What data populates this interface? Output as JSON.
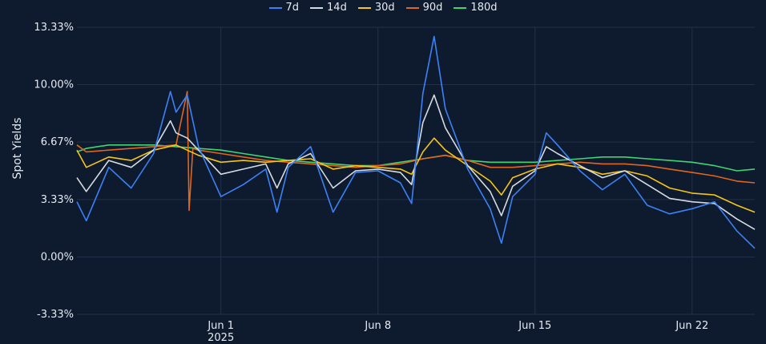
{
  "chart_data": {
    "type": "line",
    "ylabel": "Spot Yields",
    "xlabel": "",
    "y_ticks": [
      "13.33%",
      "10.00%",
      "6.67%",
      "3.33%",
      "0.00%",
      "-3.33%"
    ],
    "y_tick_values": [
      13.33,
      10.0,
      6.67,
      3.33,
      0.0,
      -3.33
    ],
    "ylim": [
      -3.33,
      13.33
    ],
    "x_ticks": [
      {
        "label": "Jun 1",
        "sub": "2025",
        "date": "2025-06-01"
      },
      {
        "label": "Jun 8",
        "sub": "",
        "date": "2025-06-08"
      },
      {
        "label": "Jun 15",
        "sub": "",
        "date": "2025-06-15"
      },
      {
        "label": "Jun 22",
        "sub": "",
        "date": "2025-06-22"
      }
    ],
    "xlim": [
      "2025-05-25T14:00",
      "2025-06-24T19:00"
    ],
    "grid": true,
    "legend_position": "top-center",
    "series": [
      {
        "name": "7d",
        "color": "#3b82f6",
        "points": [
          [
            "2025-05-25T14:00",
            3.2
          ],
          [
            "2025-05-26",
            2.1
          ],
          [
            "2025-05-27",
            5.2
          ],
          [
            "2025-05-28",
            4.0
          ],
          [
            "2025-05-29",
            6.0
          ],
          [
            "2025-05-29T18:00",
            9.6
          ],
          [
            "2025-05-30",
            8.4
          ],
          [
            "2025-05-30T12:00",
            9.4
          ],
          [
            "2025-05-31",
            6.4
          ],
          [
            "2025-06-01",
            3.5
          ],
          [
            "2025-06-02",
            4.2
          ],
          [
            "2025-06-03",
            5.1
          ],
          [
            "2025-06-03T12:00",
            2.6
          ],
          [
            "2025-06-04",
            5.2
          ],
          [
            "2025-06-05",
            6.4
          ],
          [
            "2025-06-06",
            2.6
          ],
          [
            "2025-06-07",
            4.9
          ],
          [
            "2025-06-08",
            5.0
          ],
          [
            "2025-06-09",
            4.3
          ],
          [
            "2025-06-09T12:00",
            3.1
          ],
          [
            "2025-06-10",
            9.5
          ],
          [
            "2025-06-10T12:00",
            12.8
          ],
          [
            "2025-06-11",
            8.6
          ],
          [
            "2025-06-12",
            5.1
          ],
          [
            "2025-06-13",
            2.8
          ],
          [
            "2025-06-13T12:00",
            0.8
          ],
          [
            "2025-06-14",
            3.5
          ],
          [
            "2025-06-15",
            4.8
          ],
          [
            "2025-06-15T12:00",
            7.2
          ],
          [
            "2025-06-16",
            6.5
          ],
          [
            "2025-06-17",
            5.0
          ],
          [
            "2025-06-18",
            3.9
          ],
          [
            "2025-06-19",
            4.8
          ],
          [
            "2025-06-20",
            3.0
          ],
          [
            "2025-06-21",
            2.5
          ],
          [
            "2025-06-22",
            2.8
          ],
          [
            "2025-06-23",
            3.2
          ],
          [
            "2025-06-24",
            1.5
          ],
          [
            "2025-06-24T19:00",
            0.5
          ]
        ]
      },
      {
        "name": "14d",
        "color": "#d6dbe2",
        "points": [
          [
            "2025-05-25T14:00",
            4.6
          ],
          [
            "2025-05-26",
            3.8
          ],
          [
            "2025-05-27",
            5.6
          ],
          [
            "2025-05-28",
            5.2
          ],
          [
            "2025-05-29",
            6.2
          ],
          [
            "2025-05-29T18:00",
            7.9
          ],
          [
            "2025-05-30",
            7.2
          ],
          [
            "2025-05-30T12:00",
            6.9
          ],
          [
            "2025-05-31",
            6.2
          ],
          [
            "2025-06-01",
            4.8
          ],
          [
            "2025-06-02",
            5.1
          ],
          [
            "2025-06-03",
            5.4
          ],
          [
            "2025-06-03T12:00",
            4.0
          ],
          [
            "2025-06-04",
            5.4
          ],
          [
            "2025-06-05",
            6.0
          ],
          [
            "2025-06-06",
            4.0
          ],
          [
            "2025-06-07",
            5.0
          ],
          [
            "2025-06-08",
            5.1
          ],
          [
            "2025-06-09",
            4.9
          ],
          [
            "2025-06-09T12:00",
            4.2
          ],
          [
            "2025-06-10",
            7.8
          ],
          [
            "2025-06-10T12:00",
            9.4
          ],
          [
            "2025-06-11",
            7.5
          ],
          [
            "2025-06-12",
            5.3
          ],
          [
            "2025-06-13",
            3.8
          ],
          [
            "2025-06-13T12:00",
            2.4
          ],
          [
            "2025-06-14",
            4.1
          ],
          [
            "2025-06-15",
            5.0
          ],
          [
            "2025-06-15T12:00",
            6.4
          ],
          [
            "2025-06-16",
            6.0
          ],
          [
            "2025-06-17",
            5.3
          ],
          [
            "2025-06-18",
            4.6
          ],
          [
            "2025-06-19",
            5.0
          ],
          [
            "2025-06-20",
            4.2
          ],
          [
            "2025-06-21",
            3.4
          ],
          [
            "2025-06-22",
            3.2
          ],
          [
            "2025-06-23",
            3.1
          ],
          [
            "2025-06-24",
            2.2
          ],
          [
            "2025-06-24T19:00",
            1.6
          ]
        ]
      },
      {
        "name": "30d",
        "color": "#f5c518",
        "points": [
          [
            "2025-05-25T14:00",
            6.2
          ],
          [
            "2025-05-26",
            5.2
          ],
          [
            "2025-05-27",
            5.8
          ],
          [
            "2025-05-28",
            5.6
          ],
          [
            "2025-05-29",
            6.2
          ],
          [
            "2025-05-30",
            6.5
          ],
          [
            "2025-05-31",
            5.9
          ],
          [
            "2025-06-01",
            5.5
          ],
          [
            "2025-06-02",
            5.6
          ],
          [
            "2025-06-03",
            5.5
          ],
          [
            "2025-06-04",
            5.6
          ],
          [
            "2025-06-05",
            5.7
          ],
          [
            "2025-06-06",
            5.1
          ],
          [
            "2025-06-07",
            5.3
          ],
          [
            "2025-06-08",
            5.2
          ],
          [
            "2025-06-09",
            5.1
          ],
          [
            "2025-06-09T12:00",
            4.8
          ],
          [
            "2025-06-10",
            6.1
          ],
          [
            "2025-06-10T12:00",
            6.9
          ],
          [
            "2025-06-11",
            6.2
          ],
          [
            "2025-06-12",
            5.3
          ],
          [
            "2025-06-13",
            4.4
          ],
          [
            "2025-06-13T12:00",
            3.6
          ],
          [
            "2025-06-14",
            4.6
          ],
          [
            "2025-06-15",
            5.1
          ],
          [
            "2025-06-16",
            5.4
          ],
          [
            "2025-06-17",
            5.2
          ],
          [
            "2025-06-18",
            4.8
          ],
          [
            "2025-06-19",
            5.0
          ],
          [
            "2025-06-20",
            4.7
          ],
          [
            "2025-06-21",
            4.0
          ],
          [
            "2025-06-22",
            3.7
          ],
          [
            "2025-06-23",
            3.6
          ],
          [
            "2025-06-24",
            3.0
          ],
          [
            "2025-06-24T19:00",
            2.6
          ]
        ]
      },
      {
        "name": "90d",
        "color": "#e0661a",
        "points": [
          [
            "2025-05-25T14:00",
            6.5
          ],
          [
            "2025-05-26",
            6.1
          ],
          [
            "2025-05-27",
            6.2
          ],
          [
            "2025-05-28",
            6.3
          ],
          [
            "2025-05-29",
            6.4
          ],
          [
            "2025-05-30",
            6.5
          ],
          [
            "2025-05-30T12:00",
            9.6
          ],
          [
            "2025-05-30T14:00",
            2.7
          ],
          [
            "2025-05-30T18:00",
            6.3
          ],
          [
            "2025-05-31",
            6.2
          ],
          [
            "2025-06-01",
            6.0
          ],
          [
            "2025-06-02",
            5.8
          ],
          [
            "2025-06-03",
            5.6
          ],
          [
            "2025-06-04",
            5.5
          ],
          [
            "2025-06-05",
            5.4
          ],
          [
            "2025-06-06",
            5.3
          ],
          [
            "2025-06-07",
            5.2
          ],
          [
            "2025-06-08",
            5.3
          ],
          [
            "2025-06-09",
            5.4
          ],
          [
            "2025-06-10",
            5.7
          ],
          [
            "2025-06-11",
            5.9
          ],
          [
            "2025-06-12",
            5.6
          ],
          [
            "2025-06-13",
            5.2
          ],
          [
            "2025-06-14",
            5.2
          ],
          [
            "2025-06-15",
            5.3
          ],
          [
            "2025-06-16",
            5.4
          ],
          [
            "2025-06-17",
            5.5
          ],
          [
            "2025-06-18",
            5.4
          ],
          [
            "2025-06-19",
            5.4
          ],
          [
            "2025-06-20",
            5.3
          ],
          [
            "2025-06-21",
            5.1
          ],
          [
            "2025-06-22",
            4.9
          ],
          [
            "2025-06-23",
            4.7
          ],
          [
            "2025-06-24",
            4.4
          ],
          [
            "2025-06-24T19:00",
            4.3
          ]
        ]
      },
      {
        "name": "180d",
        "color": "#3ed672",
        "points": [
          [
            "2025-05-25T14:00",
            6.1
          ],
          [
            "2025-05-26",
            6.3
          ],
          [
            "2025-05-27",
            6.5
          ],
          [
            "2025-05-28",
            6.5
          ],
          [
            "2025-05-29",
            6.5
          ],
          [
            "2025-05-30",
            6.4
          ],
          [
            "2025-05-31",
            6.3
          ],
          [
            "2025-06-01",
            6.2
          ],
          [
            "2025-06-02",
            6.0
          ],
          [
            "2025-06-03",
            5.8
          ],
          [
            "2025-06-04",
            5.6
          ],
          [
            "2025-06-05",
            5.5
          ],
          [
            "2025-06-06",
            5.4
          ],
          [
            "2025-06-07",
            5.3
          ],
          [
            "2025-06-08",
            5.3
          ],
          [
            "2025-06-09",
            5.5
          ],
          [
            "2025-06-10",
            5.7
          ],
          [
            "2025-06-11",
            5.9
          ],
          [
            "2025-06-12",
            5.6
          ],
          [
            "2025-06-13",
            5.5
          ],
          [
            "2025-06-14",
            5.5
          ],
          [
            "2025-06-15",
            5.5
          ],
          [
            "2025-06-16",
            5.6
          ],
          [
            "2025-06-17",
            5.7
          ],
          [
            "2025-06-18",
            5.8
          ],
          [
            "2025-06-19",
            5.8
          ],
          [
            "2025-06-20",
            5.7
          ],
          [
            "2025-06-21",
            5.6
          ],
          [
            "2025-06-22",
            5.5
          ],
          [
            "2025-06-23",
            5.3
          ],
          [
            "2025-06-24",
            5.0
          ],
          [
            "2025-06-24T19:00",
            5.1
          ]
        ]
      }
    ]
  }
}
